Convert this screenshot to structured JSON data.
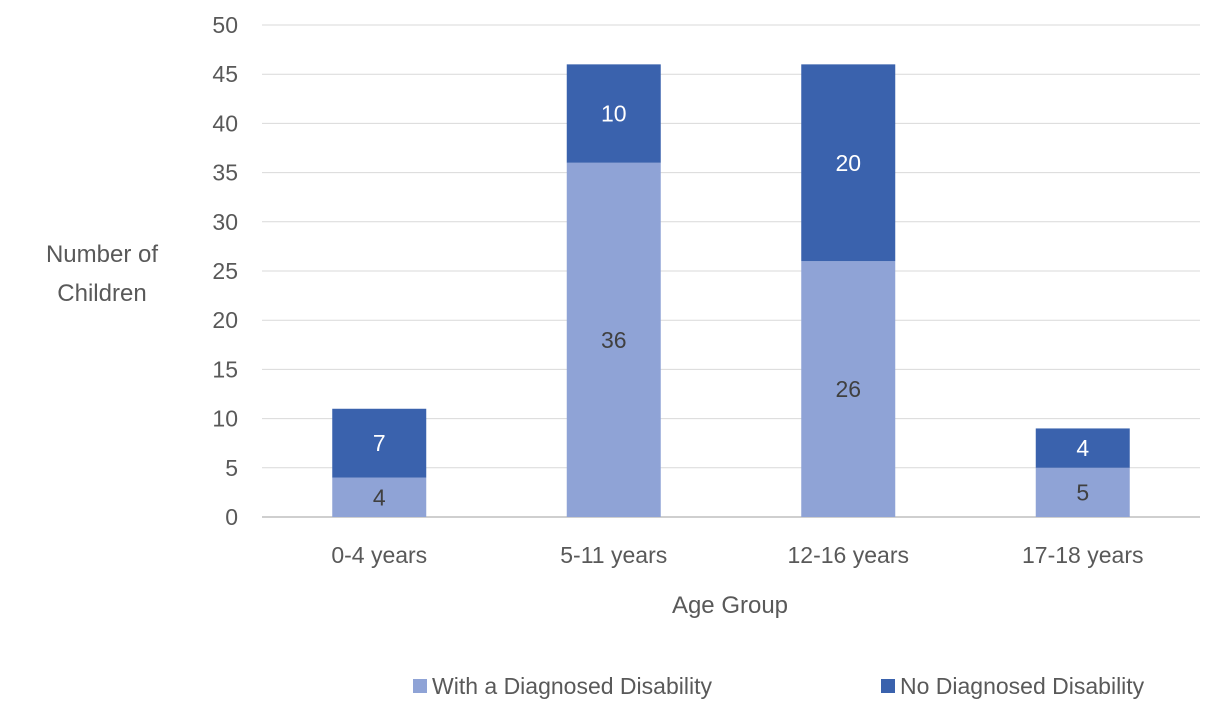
{
  "chart_data": {
    "type": "bar",
    "stacked": true,
    "categories": [
      "0-4 years",
      "5-11 years",
      "12-16 years",
      "17-18 years"
    ],
    "series": [
      {
        "name": "With a Diagnosed Disability",
        "values": [
          4,
          36,
          26,
          5
        ],
        "color": "#8FA3D6",
        "label_color": "#404040"
      },
      {
        "name": "No Diagnosed Disability",
        "values": [
          7,
          10,
          20,
          4
        ],
        "color": "#3A62AD",
        "label_color": "#ffffff"
      }
    ],
    "xlabel": "Age Group",
    "ylabel": [
      "Number of",
      "Children"
    ],
    "ylim": [
      0,
      50
    ],
    "yticks": [
      0,
      5,
      10,
      15,
      20,
      25,
      30,
      35,
      40,
      45,
      50
    ],
    "grid": true,
    "legend_position": "bottom-right",
    "gridline_color": "#d9d9d9",
    "axis_color": "#bfbfbf"
  }
}
